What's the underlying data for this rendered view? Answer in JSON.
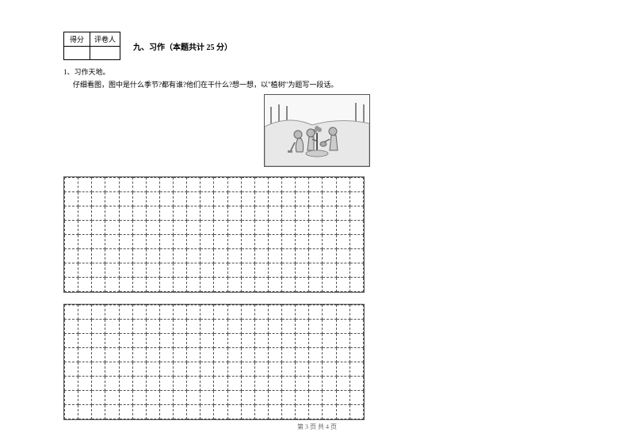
{
  "scoreBox": {
    "col1": "得分",
    "col2": "评卷人"
  },
  "section": {
    "number": "九、",
    "title": "习作",
    "points": "（本题共计 25 分）"
  },
  "question": {
    "number": "1、",
    "label": "习作天地。",
    "text": "仔细看图，图中是什么季节?都有谁?他们在干什么?想一想，以\"植树\"为题写一段话。"
  },
  "grid": {
    "block1_rows": 8,
    "block2_rows": 8,
    "cols": 22
  },
  "illustration": {
    "alt": "children-planting-trees-scene"
  },
  "footer": {
    "text": "第 3 页  共 4 页"
  },
  "colors": {
    "text": "#000000",
    "border": "#555555",
    "background": "#ffffff",
    "footer_text": "#666666"
  }
}
